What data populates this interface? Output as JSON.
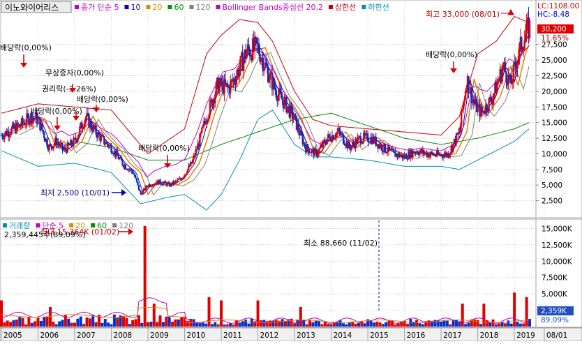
{
  "header": {
    "stock_name": "이노와이어리스",
    "price_legend": [
      {
        "label": "종가 단순 5",
        "color": "#c000c0"
      },
      {
        "label": "10",
        "color": "#0000c0"
      },
      {
        "label": "20",
        "color": "#d09000"
      },
      {
        "label": "60",
        "color": "#009000"
      },
      {
        "label": "120",
        "color": "#808080"
      },
      {
        "label": "Bollinger Bands중심선 20,2",
        "color": "#c000c0"
      },
      {
        "label": "상한선",
        "color": "#c00000"
      },
      {
        "label": "하한선",
        "color": "#0090b0"
      }
    ],
    "lc": "LC:1108.00",
    "hc": "HC:-8.48"
  },
  "volume_legend": [
    {
      "label": "거래량",
      "color": "#0090b0"
    },
    {
      "label": "단순 5",
      "color": "#c000c0"
    },
    {
      "label": "20",
      "color": "#d09000"
    },
    {
      "label": "60",
      "color": "#009000"
    },
    {
      "label": "120",
      "color": "#808080"
    }
  ],
  "price_badges": {
    "current": "30,200",
    "pct": "11.65%"
  },
  "volume_badges": {
    "current": "2,359K",
    "pct": "89.09%"
  },
  "annotations": {
    "max": "최고 33,000 (08/01)",
    "min": "최저 2,500 (10/01)",
    "div1": "배당락(0,00%)",
    "bonus": "무상증자(0,00%)",
    "rights": "권리락(-3.26%)",
    "div2": "배당락(0,00%)",
    "div3": "배당락(0,00%)",
    "div4": "배당락(0,00%)",
    "div5": "배당락(0,00%)",
    "vol_max": "최대 15,364K (01/02)",
    "vol_max_sub": "2,359,445주(89,09%)",
    "vol_min": "최소 88,660 (11/02)"
  },
  "chart_data": [
    {
      "type": "candlestick",
      "title": "이노와이어리스",
      "period": "monthly",
      "y_ticks": [
        2500,
        5000,
        7500,
        10000,
        12500,
        15000,
        17500,
        20000,
        22500,
        25000,
        27500
      ],
      "y_tick_labels": [
        "2,500",
        "5,000",
        "7,500",
        "10,000",
        "12,500",
        "15,000",
        "17,500",
        "20,000",
        "22,500",
        "25,000",
        "27,500"
      ],
      "ylim": [
        0,
        33500
      ],
      "x_labels": [
        "2005",
        "2006",
        "2007",
        "2008",
        "2009",
        "2010",
        "2011",
        "2012",
        "2013",
        "2014",
        "2015",
        "2016",
        "2017",
        "2018",
        "2019",
        "08/01"
      ],
      "close_points": [
        [
          2005.0,
          13000
        ],
        [
          2005.5,
          14500
        ],
        [
          2005.8,
          16000
        ],
        [
          2006.0,
          15500
        ],
        [
          2006.3,
          11000
        ],
        [
          2006.5,
          12000
        ],
        [
          2006.7,
          10500
        ],
        [
          2007.0,
          12000
        ],
        [
          2007.3,
          16000
        ],
        [
          2007.5,
          14000
        ],
        [
          2007.8,
          12000
        ],
        [
          2008.0,
          11000
        ],
        [
          2008.3,
          8500
        ],
        [
          2008.6,
          7000
        ],
        [
          2008.8,
          3500
        ],
        [
          2009.0,
          5000
        ],
        [
          2009.3,
          5500
        ],
        [
          2009.6,
          5000
        ],
        [
          2009.9,
          6000
        ],
        [
          2010.2,
          8500
        ],
        [
          2010.4,
          12000
        ],
        [
          2010.6,
          16000
        ],
        [
          2010.9,
          21000
        ],
        [
          2011.2,
          20500
        ],
        [
          2011.4,
          22500
        ],
        [
          2011.7,
          26500
        ],
        [
          2012.0,
          27000
        ],
        [
          2012.2,
          24000
        ],
        [
          2012.5,
          20000
        ],
        [
          2012.8,
          17500
        ],
        [
          2013.0,
          15500
        ],
        [
          2013.3,
          11000
        ],
        [
          2013.6,
          10000
        ],
        [
          2013.9,
          12500
        ],
        [
          2014.2,
          13500
        ],
        [
          2014.5,
          11000
        ],
        [
          2014.8,
          12500
        ],
        [
          2015.1,
          12500
        ],
        [
          2015.4,
          11000
        ],
        [
          2015.7,
          10000
        ],
        [
          2016.0,
          9500
        ],
        [
          2016.3,
          10500
        ],
        [
          2016.6,
          10000
        ],
        [
          2016.9,
          9800
        ],
        [
          2017.2,
          10000
        ],
        [
          2017.5,
          13500
        ],
        [
          2017.7,
          22000
        ],
        [
          2017.9,
          18000
        ],
        [
          2018.1,
          16500
        ],
        [
          2018.4,
          19000
        ],
        [
          2018.7,
          24000
        ],
        [
          2018.9,
          21000
        ],
        [
          2019.1,
          26000
        ],
        [
          2019.3,
          29000
        ],
        [
          2019.4,
          30200
        ]
      ],
      "bollinger_upper_points": [
        [
          2005.0,
          16500
        ],
        [
          2006.0,
          18000
        ],
        [
          2007.0,
          17500
        ],
        [
          2008.0,
          17000
        ],
        [
          2009.0,
          10000
        ],
        [
          2010.0,
          14000
        ],
        [
          2010.6,
          26000
        ],
        [
          2011.0,
          29000
        ],
        [
          2011.5,
          31500
        ],
        [
          2012.0,
          31000
        ],
        [
          2012.4,
          28000
        ],
        [
          2013.0,
          20000
        ],
        [
          2013.5,
          15500
        ],
        [
          2014.0,
          14500
        ],
        [
          2015.0,
          14000
        ],
        [
          2016.0,
          13500
        ],
        [
          2017.0,
          13000
        ],
        [
          2017.5,
          16000
        ],
        [
          2018.0,
          26000
        ],
        [
          2018.5,
          28000
        ],
        [
          2019.0,
          32000
        ],
        [
          2019.4,
          31000
        ]
      ],
      "bollinger_lower_points": [
        [
          2005.0,
          10500
        ],
        [
          2006.0,
          8000
        ],
        [
          2007.0,
          8500
        ],
        [
          2008.0,
          7000
        ],
        [
          2008.8,
          2000
        ],
        [
          2009.5,
          3000
        ],
        [
          2010.0,
          3500
        ],
        [
          2010.6,
          1000
        ],
        [
          2011.0,
          3500
        ],
        [
          2011.5,
          9000
        ],
        [
          2012.0,
          15500
        ],
        [
          2012.4,
          17000
        ],
        [
          2013.0,
          11500
        ],
        [
          2013.5,
          9500
        ],
        [
          2014.0,
          9500
        ],
        [
          2015.0,
          9000
        ],
        [
          2016.0,
          8000
        ],
        [
          2017.0,
          8000
        ],
        [
          2017.5,
          7500
        ],
        [
          2018.0,
          9000
        ],
        [
          2018.5,
          10500
        ],
        [
          2019.0,
          12000
        ],
        [
          2019.4,
          14000
        ]
      ],
      "ma120_points": [
        [
          2007.0,
          12000
        ],
        [
          2008.0,
          11000
        ],
        [
          2009.0,
          9000
        ],
        [
          2010.0,
          9000
        ],
        [
          2011.0,
          11500
        ],
        [
          2012.0,
          13500
        ],
        [
          2013.0,
          15500
        ],
        [
          2014.0,
          16500
        ],
        [
          2015.0,
          14500
        ],
        [
          2016.0,
          12500
        ],
        [
          2017.0,
          11500
        ],
        [
          2018.0,
          12500
        ],
        [
          2019.0,
          14000
        ],
        [
          2019.4,
          15000
        ]
      ]
    },
    {
      "type": "bar",
      "title": "거래량",
      "units": "K",
      "y_ticks": [
        2500,
        5000,
        7500,
        10000,
        12500,
        15000
      ],
      "y_tick_labels": [
        "2,500K",
        "5,000K",
        "7,500K",
        "10,000K",
        "12,500K",
        "15,000K"
      ],
      "ylim": [
        0,
        16000
      ],
      "spikes": [
        [
          2005.0,
          4000
        ],
        [
          2006.3,
          3000
        ],
        [
          2008.9,
          15364
        ],
        [
          2009.2,
          3500
        ],
        [
          2010.7,
          4500
        ],
        [
          2011.0,
          4000
        ],
        [
          2012.0,
          4000
        ],
        [
          2013.2,
          3000
        ],
        [
          2017.6,
          3500
        ],
        [
          2018.2,
          3500
        ],
        [
          2019.0,
          5200
        ],
        [
          2019.3,
          4500
        ]
      ]
    }
  ]
}
